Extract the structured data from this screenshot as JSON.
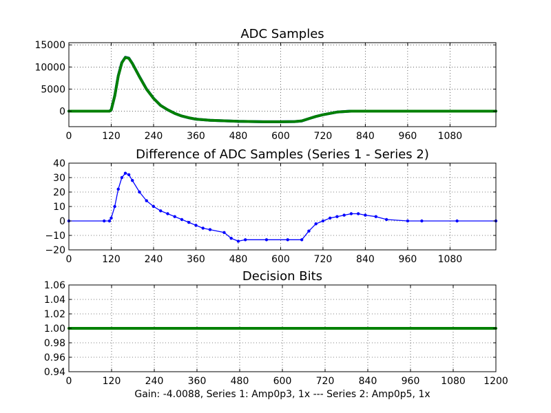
{
  "figure": {
    "caption": "Gain: -4.0088, Series 1: Amp0p3, 1x --- Series 2: Amp0p5, 1x"
  },
  "chart_data": [
    {
      "type": "line",
      "title": "ADC Samples",
      "xlabel": "",
      "ylabel": "",
      "xlim": [
        0,
        1210
      ],
      "ylim": [
        -3500,
        15500
      ],
      "x_ticks": [
        0,
        120,
        240,
        360,
        480,
        600,
        720,
        840,
        960,
        1080
      ],
      "x_tick_labels": [
        "0",
        "120",
        "240",
        "360",
        "480",
        "600",
        "720",
        "840",
        "960",
        "1080"
      ],
      "y_ticks": [
        0,
        5000,
        10000,
        15000
      ],
      "y_tick_labels": [
        "0",
        "5000",
        "10000",
        "15000"
      ],
      "grid": true,
      "series": [
        {
          "name": "Series 1",
          "color": "#0000ff",
          "x": [
            0,
            100,
            115,
            120,
            130,
            140,
            150,
            160,
            170,
            180,
            200,
            220,
            240,
            260,
            280,
            300,
            320,
            340,
            360,
            400,
            480,
            560,
            600,
            640,
            660,
            680,
            700,
            720,
            760,
            800,
            840,
            900,
            1000,
            1100,
            1210
          ],
          "y": [
            0,
            0,
            0,
            300,
            3500,
            8000,
            11000,
            12200,
            12000,
            10800,
            7800,
            5000,
            2900,
            1300,
            300,
            -500,
            -1100,
            -1500,
            -1800,
            -2050,
            -2300,
            -2400,
            -2400,
            -2350,
            -2200,
            -1700,
            -1200,
            -800,
            -200,
            0,
            0,
            0,
            0,
            0,
            0
          ]
        },
        {
          "name": "Series 2",
          "color": "#008000",
          "x": [
            0,
            100,
            115,
            120,
            130,
            140,
            150,
            160,
            170,
            180,
            200,
            220,
            240,
            260,
            280,
            300,
            320,
            340,
            360,
            400,
            480,
            560,
            600,
            640,
            660,
            680,
            700,
            720,
            760,
            800,
            840,
            900,
            1000,
            1100,
            1210
          ],
          "y": [
            0,
            0,
            0,
            300,
            3450,
            7950,
            10950,
            12170,
            11970,
            10780,
            7780,
            4985,
            2890,
            1295,
            298,
            -498,
            -1098,
            -1497,
            -1797,
            -2047,
            -2297,
            -2397,
            -2397,
            -2347,
            -2197,
            -1698,
            -1199,
            -799,
            -199,
            0,
            0,
            0,
            0,
            0,
            0
          ]
        }
      ]
    },
    {
      "type": "line",
      "title": "Difference of ADC Samples (Series 1 - Series 2)",
      "xlabel": "",
      "ylabel": "",
      "xlim": [
        0,
        1210
      ],
      "ylim": [
        -20,
        40
      ],
      "x_ticks": [
        0,
        120,
        240,
        360,
        480,
        600,
        720,
        840,
        960,
        1080
      ],
      "x_tick_labels": [
        "0",
        "120",
        "240",
        "360",
        "480",
        "600",
        "720",
        "840",
        "960",
        "1080"
      ],
      "y_ticks": [
        -20,
        -10,
        0,
        10,
        20,
        30,
        40
      ],
      "y_tick_labels": [
        "−20",
        "−10",
        "0",
        "10",
        "20",
        "30",
        "40"
      ],
      "grid": true,
      "series": [
        {
          "name": "Difference",
          "color": "#0000ff",
          "markers": true,
          "x": [
            0,
            100,
            115,
            120,
            130,
            140,
            150,
            160,
            170,
            180,
            200,
            220,
            240,
            260,
            280,
            300,
            320,
            340,
            360,
            380,
            400,
            440,
            460,
            480,
            500,
            560,
            620,
            660,
            680,
            700,
            720,
            740,
            760,
            780,
            800,
            820,
            840,
            870,
            900,
            960,
            1000,
            1100,
            1210
          ],
          "y": [
            0,
            0,
            0,
            2,
            10,
            22,
            30,
            33,
            32,
            28,
            20,
            14,
            10,
            7,
            5,
            3,
            1,
            -1,
            -3,
            -5,
            -6,
            -8,
            -12,
            -14,
            -13,
            -13,
            -13,
            -13,
            -7,
            -2,
            0,
            2,
            3,
            4,
            5,
            5,
            4,
            3,
            1,
            0,
            0,
            0,
            0
          ]
        }
      ]
    },
    {
      "type": "line",
      "title": "Decision Bits",
      "xlabel": "Gain: -4.0088, Series 1: Amp0p3, 1x --- Series 2: Amp0p5, 1x",
      "ylabel": "",
      "xlim": [
        0,
        1200
      ],
      "ylim": [
        0.94,
        1.06
      ],
      "x_ticks": [
        0,
        120,
        240,
        360,
        480,
        600,
        720,
        840,
        960,
        1080,
        1200
      ],
      "x_tick_labels": [
        "0",
        "120",
        "240",
        "360",
        "480",
        "600",
        "720",
        "840",
        "960",
        "1080",
        "1200"
      ],
      "y_ticks": [
        0.94,
        0.96,
        0.98,
        1.0,
        1.02,
        1.04,
        1.06
      ],
      "y_tick_labels": [
        "0.94",
        "0.96",
        "0.98",
        "1.00",
        "1.02",
        "1.04",
        "1.06"
      ],
      "grid": true,
      "series": [
        {
          "name": "Decision Bits",
          "color": "#008000",
          "x": [
            0,
            1200
          ],
          "y": [
            1.0,
            1.0
          ]
        }
      ]
    }
  ]
}
